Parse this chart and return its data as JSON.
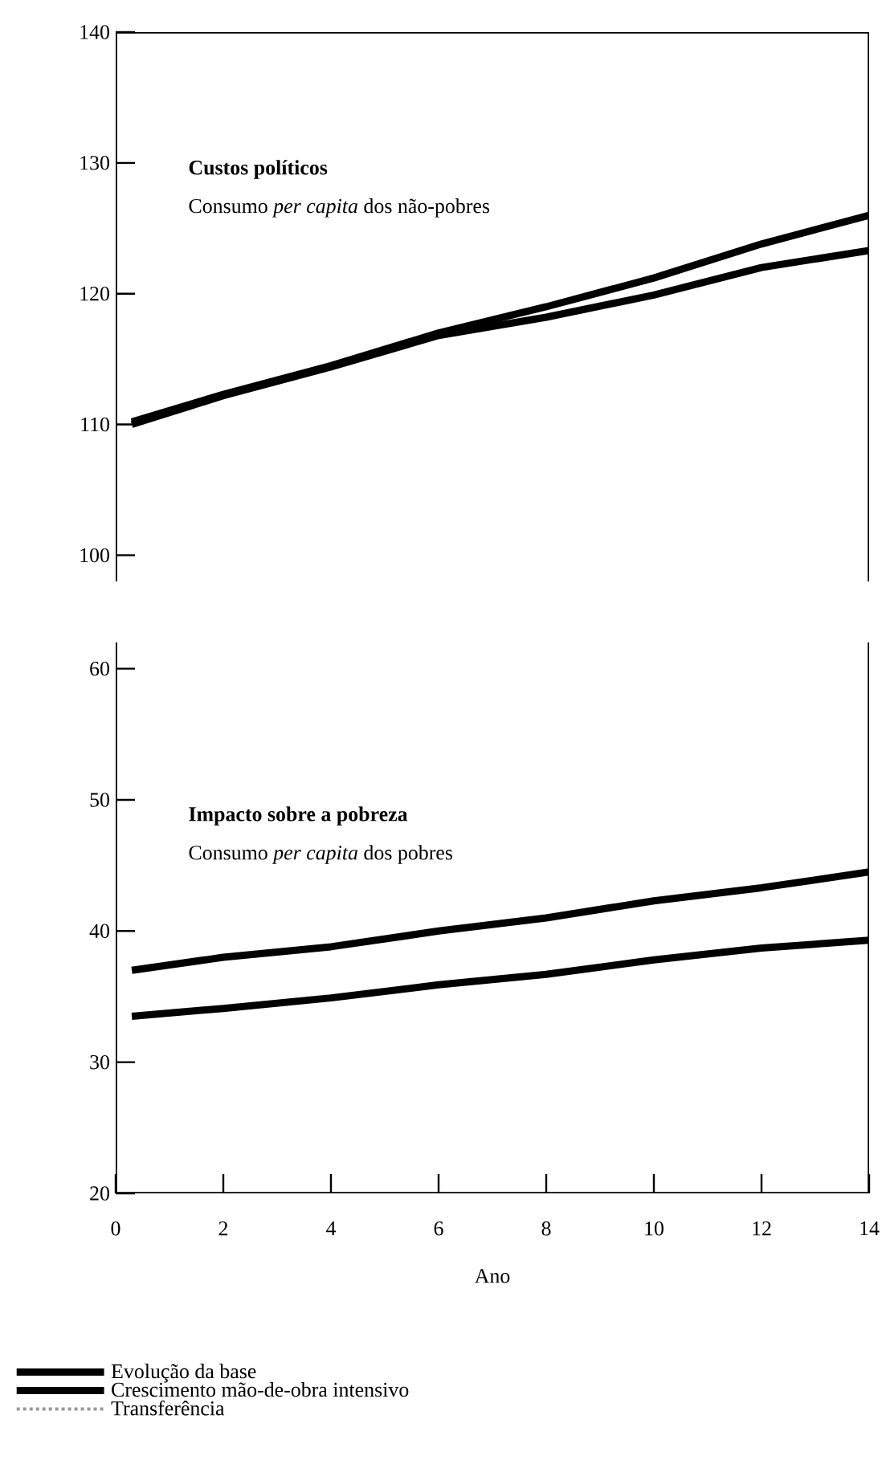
{
  "chart_data": [
    {
      "type": "line",
      "title": "Custos políticos",
      "subtitle": "Consumo *per capita* dos não-pobres",
      "x": [
        0.3,
        2,
        4,
        6,
        8,
        10,
        12,
        14
      ],
      "series": [
        {
          "color": "#000000",
          "values": [
            110.2,
            112.3,
            114.5,
            117.0,
            119.0,
            121.2,
            123.8,
            126.0
          ]
        },
        {
          "color": "#000000",
          "values": [
            110.0,
            112.2,
            114.4,
            116.8,
            118.2,
            119.9,
            122.0,
            123.3
          ]
        }
      ],
      "xlim": [
        0,
        14
      ],
      "ylim": [
        98,
        140
      ],
      "yticks": [
        100,
        110,
        120,
        130,
        140
      ],
      "tick_labels": "y"
    },
    {
      "type": "line",
      "title": "Impacto sobre a pobreza",
      "subtitle": "Consumo *per capita* dos pobres",
      "xlabel": "Ano",
      "x": [
        0.3,
        2,
        4,
        6,
        8,
        10,
        12,
        14
      ],
      "series": [
        {
          "name": "Evolução da base",
          "color": "#000000",
          "values": [
            33.5,
            34.1,
            34.9,
            35.9,
            36.7,
            37.8,
            38.7,
            39.3
          ]
        },
        {
          "name": "Crescimento mão-de-obra intensivo",
          "color": "#000000",
          "values": [
            37.0,
            38.0,
            38.8,
            40.0,
            41.0,
            42.3,
            43.3,
            44.5
          ]
        },
        {
          "name": "Transferência",
          "color": "#999999",
          "line_style": "dotted",
          "values": [
            null,
            null,
            null,
            null,
            null,
            null,
            null,
            null
          ]
        }
      ],
      "xlim": [
        0,
        14
      ],
      "ylim": [
        20,
        62
      ],
      "xticks": [
        0,
        2,
        4,
        6,
        8,
        10,
        12,
        14
      ],
      "yticks": [
        20,
        30,
        40,
        50,
        60
      ],
      "legend": "bottom"
    }
  ]
}
